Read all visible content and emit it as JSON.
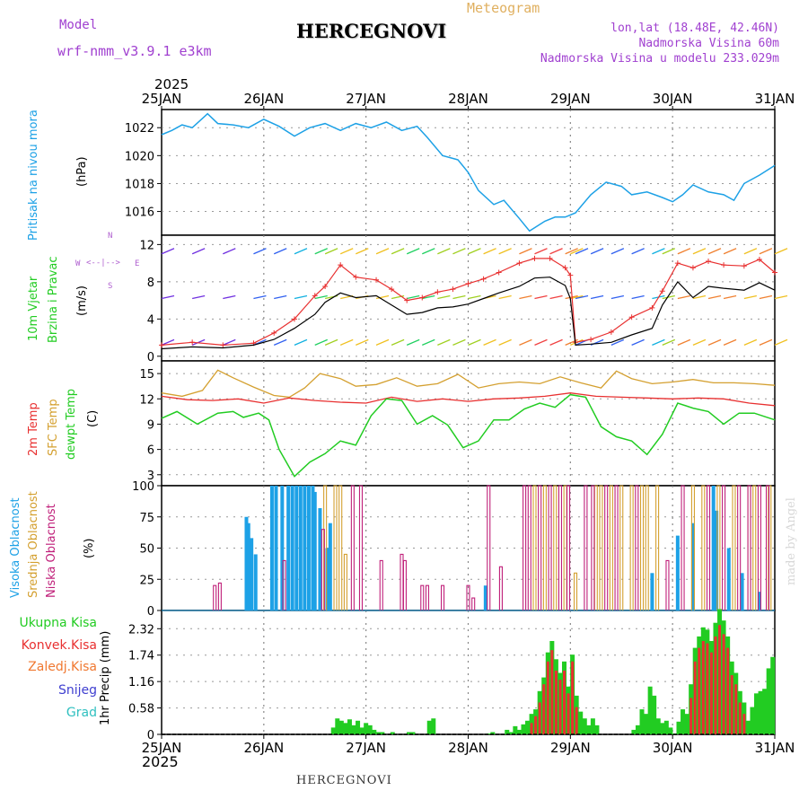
{
  "header": {
    "model_label": "Model",
    "model_name": "wrf-nmm_v3.9.1 e3km",
    "title": "HERCEGNOVI",
    "meteogram": "Meteogram",
    "coords": "lon,lat (18.48E, 42.46N)",
    "elevation": "Nadmorska Visina 60m",
    "model_elevation": "Nadmorska Visina u modelu 233.029m",
    "footer_title": "HERCEGNOVI",
    "watermark": "made by Angel"
  },
  "time_axis": {
    "year": "2025",
    "ticks": [
      "25JAN",
      "26JAN",
      "27JAN",
      "28JAN",
      "29JAN",
      "30JAN",
      "31JAN"
    ]
  },
  "colors": {
    "pressure": "#1da1e6",
    "wind_speed": "#000000",
    "wind_gust": "#e83030",
    "t2m": "#e83030",
    "sfc": "#d4a030",
    "dewpt": "#22cc22",
    "high_cloud": "#1da1e6",
    "mid_cloud": "#d4a030",
    "low_cloud": "#c0207a",
    "total_precip": "#22cc22",
    "conv_precip": "#e83030"
  },
  "chart_data": [
    {
      "type": "line",
      "title": "Pritisak na nivou mora",
      "ylabel": "(hPa)",
      "yticks": [
        "1022",
        "1020",
        "1018",
        "1016"
      ],
      "ylim": [
        1014.3,
        1023.3
      ],
      "xlim": [
        0,
        6
      ],
      "series": [
        {
          "name": "pressure",
          "x": [
            0,
            0.1,
            0.2,
            0.3,
            0.45,
            0.55,
            0.7,
            0.85,
            1.0,
            1.15,
            1.3,
            1.45,
            1.6,
            1.75,
            1.9,
            2.05,
            2.2,
            2.35,
            2.5,
            2.6,
            2.75,
            2.9,
            3.0,
            3.1,
            3.25,
            3.35,
            3.5,
            3.6,
            3.75,
            3.85,
            3.95,
            4.05,
            4.2,
            4.35,
            4.5,
            4.6,
            4.75,
            4.9,
            5.0,
            5.1,
            5.2,
            5.35,
            5.5,
            5.6,
            5.7,
            5.85,
            6.0
          ],
          "values": [
            1021.5,
            1021.8,
            1022.2,
            1022.0,
            1023.0,
            1022.3,
            1022.2,
            1022.0,
            1022.6,
            1022.1,
            1021.4,
            1022.0,
            1022.3,
            1021.8,
            1022.3,
            1022.0,
            1022.4,
            1021.8,
            1022.1,
            1021.3,
            1020.0,
            1019.7,
            1018.8,
            1017.5,
            1016.5,
            1016.8,
            1015.5,
            1014.6,
            1015.3,
            1015.6,
            1015.6,
            1015.9,
            1017.2,
            1018.1,
            1017.8,
            1017.2,
            1017.4,
            1017.0,
            1016.7,
            1017.2,
            1017.9,
            1017.4,
            1017.2,
            1016.8,
            1018.0,
            1018.6,
            1019.3
          ]
        }
      ]
    },
    {
      "type": "line",
      "title": "10m Vjetar Brzina i Pravac",
      "ylabel": "(m/s)",
      "yticks": [
        "12",
        "8",
        "4",
        "0"
      ],
      "ylim": [
        -0.5,
        13
      ],
      "compass": {
        "n": "N",
        "e": "E",
        "w": "W",
        "s": "S"
      },
      "xlim": [
        0,
        6
      ],
      "series": [
        {
          "name": "wind_speed",
          "x": [
            0,
            0.3,
            0.6,
            0.9,
            1.1,
            1.3,
            1.5,
            1.6,
            1.75,
            1.9,
            2.1,
            2.25,
            2.4,
            2.55,
            2.7,
            2.85,
            3.0,
            3.15,
            3.3,
            3.5,
            3.65,
            3.8,
            3.95,
            4.0,
            4.05,
            4.2,
            4.4,
            4.6,
            4.8,
            4.9,
            5.05,
            5.2,
            5.35,
            5.5,
            5.7,
            5.85,
            6.0
          ],
          "values": [
            0.8,
            1.0,
            0.9,
            1.2,
            1.8,
            3.0,
            4.5,
            5.8,
            6.8,
            6.3,
            6.5,
            5.5,
            4.5,
            4.7,
            5.2,
            5.3,
            5.6,
            6.2,
            6.8,
            7.5,
            8.4,
            8.5,
            7.6,
            6.2,
            1.2,
            1.3,
            1.5,
            2.3,
            3.0,
            5.5,
            8.0,
            6.3,
            7.5,
            7.3,
            7.1,
            7.9,
            7.1
          ]
        },
        {
          "name": "wind_gust",
          "x": [
            0,
            0.3,
            0.6,
            0.9,
            1.1,
            1.3,
            1.5,
            1.6,
            1.75,
            1.9,
            2.1,
            2.25,
            2.4,
            2.55,
            2.7,
            2.85,
            3.0,
            3.15,
            3.3,
            3.5,
            3.65,
            3.8,
            3.95,
            4.0,
            4.05,
            4.2,
            4.4,
            4.6,
            4.8,
            4.9,
            5.05,
            5.2,
            5.35,
            5.5,
            5.7,
            5.85,
            6.0
          ],
          "values": [
            1.2,
            1.5,
            1.2,
            1.4,
            2.5,
            4.0,
            6.5,
            7.5,
            9.8,
            8.5,
            8.2,
            7.2,
            6.0,
            6.3,
            6.9,
            7.2,
            7.8,
            8.3,
            9.0,
            10.0,
            10.5,
            10.5,
            9.5,
            8.7,
            1.5,
            1.8,
            2.6,
            4.2,
            5.2,
            7.0,
            10.0,
            9.5,
            10.2,
            9.8,
            9.7,
            10.4,
            9.0
          ]
        }
      ]
    },
    {
      "type": "line",
      "title": "2m Temp / SFC Temp / dewpt Temp",
      "ylabel": "(C)",
      "yticks": [
        "15",
        "12",
        "9",
        "6",
        "3"
      ],
      "ylim": [
        1.7,
        16.5
      ],
      "xlim": [
        0,
        6
      ],
      "series": [
        {
          "name": "2m Temp",
          "x": [
            0,
            0.25,
            0.5,
            0.75,
            1.0,
            1.25,
            1.5,
            1.75,
            2.0,
            2.25,
            2.5,
            2.75,
            3.0,
            3.25,
            3.5,
            3.75,
            4.0,
            4.25,
            4.5,
            4.75,
            5.0,
            5.25,
            5.5,
            5.75,
            6.0
          ],
          "values": [
            12.3,
            11.9,
            11.8,
            12.0,
            11.5,
            12.1,
            11.8,
            11.6,
            11.5,
            12.2,
            11.7,
            12.0,
            11.7,
            12.0,
            12.1,
            12.3,
            12.7,
            12.3,
            12.2,
            12.1,
            12.0,
            12.1,
            12.0,
            11.5,
            11.2
          ]
        },
        {
          "name": "SFC Temp",
          "x": [
            0,
            0.2,
            0.4,
            0.55,
            0.7,
            0.9,
            1.1,
            1.25,
            1.4,
            1.55,
            1.75,
            1.9,
            2.1,
            2.3,
            2.5,
            2.7,
            2.9,
            3.1,
            3.3,
            3.5,
            3.7,
            3.9,
            4.1,
            4.3,
            4.45,
            4.6,
            4.8,
            5.0,
            5.2,
            5.4,
            5.6,
            5.8,
            6.0
          ],
          "values": [
            12.7,
            12.3,
            13.0,
            15.4,
            14.5,
            13.4,
            12.4,
            12.2,
            13.3,
            15.0,
            14.4,
            13.5,
            13.7,
            14.5,
            13.5,
            13.8,
            14.9,
            13.3,
            13.8,
            14.0,
            13.8,
            14.6,
            13.9,
            13.3,
            15.3,
            14.4,
            13.8,
            14.0,
            14.3,
            13.9,
            13.9,
            13.8,
            13.6
          ]
        },
        {
          "name": "dewpt Temp",
          "x": [
            0,
            0.15,
            0.35,
            0.55,
            0.7,
            0.8,
            0.95,
            1.05,
            1.15,
            1.3,
            1.45,
            1.6,
            1.75,
            1.9,
            2.05,
            2.2,
            2.35,
            2.5,
            2.65,
            2.8,
            2.95,
            3.1,
            3.25,
            3.4,
            3.55,
            3.7,
            3.85,
            4.0,
            4.15,
            4.3,
            4.45,
            4.6,
            4.75,
            4.9,
            5.05,
            5.2,
            5.35,
            5.5,
            5.65,
            5.8,
            6.0
          ],
          "values": [
            9.7,
            10.5,
            9.0,
            10.3,
            10.5,
            9.8,
            10.3,
            9.5,
            6.0,
            2.8,
            4.5,
            5.5,
            7.0,
            6.5,
            10.0,
            12.0,
            11.8,
            9.0,
            10.0,
            8.9,
            6.2,
            7.0,
            9.5,
            9.5,
            10.8,
            11.5,
            11.0,
            12.5,
            12.2,
            8.7,
            7.5,
            7.0,
            5.4,
            7.8,
            11.5,
            10.9,
            10.5,
            9.0,
            10.3,
            10.3,
            9.5
          ]
        }
      ]
    },
    {
      "type": "bar",
      "title": "Visoka / Srednja / Niska Oblacnost",
      "ylabel": "(%)",
      "yticks": [
        "100",
        "75",
        "50",
        "25",
        "0"
      ],
      "ylim": [
        0,
        100
      ],
      "xlim": [
        0,
        6
      ],
      "series": [
        {
          "name": "Visoka Oblacnost",
          "x": [
            0.83,
            0.85,
            0.88,
            0.92,
            1.08,
            1.12,
            1.18,
            1.24,
            1.28,
            1.32,
            1.36,
            1.4,
            1.44,
            1.48,
            1.5,
            1.55,
            1.62,
            1.65,
            3.17,
            4.8,
            5.05,
            5.2,
            5.4,
            5.43,
            5.55,
            5.68,
            5.85
          ],
          "values": [
            75,
            70,
            58,
            45,
            100,
            100,
            100,
            100,
            100,
            100,
            100,
            100,
            100,
            100,
            95,
            82,
            50,
            70,
            20,
            30,
            60,
            70,
            100,
            80,
            50,
            30,
            15
          ]
        },
        {
          "name": "Srednja Oblacnost",
          "x": [
            1.6,
            1.7,
            1.75,
            1.8,
            3.65,
            3.75,
            3.85,
            3.95,
            4.05,
            4.25,
            4.3,
            4.4,
            4.5,
            4.6,
            4.7,
            4.75,
            4.85,
            5.2,
            5.3,
            5.45,
            5.6,
            5.75,
            5.8,
            5.95
          ],
          "values": [
            100,
            100,
            100,
            45,
            100,
            100,
            100,
            100,
            30,
            100,
            100,
            100,
            100,
            100,
            100,
            100,
            100,
            100,
            100,
            100,
            100,
            100,
            100,
            100
          ]
        },
        {
          "name": "Niska Oblacnost",
          "x": [
            0.52,
            0.57,
            1.2,
            1.58,
            1.87,
            1.95,
            2.15,
            2.35,
            2.38,
            2.55,
            2.6,
            2.75,
            3.0,
            3.05,
            3.2,
            3.32,
            3.55,
            3.6,
            3.7,
            3.8,
            3.9,
            3.98,
            4.15,
            4.22,
            4.35,
            4.45,
            4.65,
            4.95,
            5.1,
            5.35,
            5.5,
            5.65,
            5.75,
            5.85,
            5.93
          ],
          "values": [
            20,
            22,
            40,
            65,
            100,
            100,
            40,
            45,
            40,
            20,
            20,
            20,
            20,
            10,
            100,
            35,
            100,
            100,
            100,
            100,
            100,
            100,
            100,
            100,
            100,
            100,
            100,
            40,
            100,
            100,
            100,
            100,
            100,
            100,
            100
          ]
        }
      ]
    },
    {
      "type": "bar",
      "title": "1hr Precip",
      "ylabel": "1hr Precip (mm)",
      "legend": [
        "Ukupna Kisa",
        "Konvek.Kisa",
        "Zaledj.Kisa",
        "Snijeg",
        "Grad"
      ],
      "yticks": [
        "2.32",
        "1.74",
        "1.16",
        "0.58",
        "0"
      ],
      "ylim": [
        0,
        2.72
      ],
      "xlim": [
        0,
        6
      ],
      "series": [
        {
          "name": "Ukupna Kisa",
          "x": [
            1.68,
            1.72,
            1.76,
            1.8,
            1.84,
            1.88,
            1.92,
            1.96,
            2.0,
            2.04,
            2.08,
            2.12,
            2.16,
            2.26,
            2.42,
            2.46,
            2.62,
            2.66,
            3.2,
            3.24,
            3.38,
            3.42,
            3.46,
            3.5,
            3.54,
            3.58,
            3.62,
            3.66,
            3.7,
            3.74,
            3.78,
            3.82,
            3.86,
            3.9,
            3.94,
            3.98,
            4.02,
            4.06,
            4.1,
            4.14,
            4.18,
            4.22,
            4.26,
            4.62,
            4.66,
            4.7,
            4.74,
            4.78,
            4.82,
            4.86,
            4.9,
            4.94,
            4.98,
            5.02,
            5.06,
            5.1,
            5.14,
            5.18,
            5.22,
            5.26,
            5.3,
            5.34,
            5.38,
            5.42,
            5.46,
            5.5,
            5.54,
            5.58,
            5.62,
            5.66,
            5.7,
            5.74,
            5.78,
            5.82,
            5.86,
            5.9,
            5.94,
            5.98
          ],
          "values": [
            0.15,
            0.35,
            0.3,
            0.25,
            0.33,
            0.2,
            0.3,
            0.15,
            0.25,
            0.2,
            0.1,
            0.05,
            0.05,
            0.05,
            0.05,
            0.05,
            0.3,
            0.35,
            0.02,
            0.05,
            0.1,
            0.05,
            0.18,
            0.1,
            0.22,
            0.3,
            0.45,
            0.55,
            0.95,
            1.25,
            1.8,
            2.05,
            1.65,
            1.35,
            1.6,
            1.05,
            1.75,
            0.85,
            0.5,
            0.35,
            0.2,
            0.35,
            0.2,
            0.1,
            0.2,
            0.55,
            0.45,
            1.05,
            0.85,
            0.35,
            0.25,
            0.3,
            0.15,
            0.02,
            0.28,
            0.55,
            0.45,
            1.1,
            1.9,
            2.15,
            2.35,
            2.3,
            2.05,
            2.45,
            2.75,
            2.5,
            2.15,
            1.6,
            1.35,
            0.95,
            0.7,
            0.3,
            0.6,
            0.9,
            0.95,
            1.0,
            1.45,
            1.7
          ]
        },
        {
          "name": "Konvek.Kisa",
          "x": [
            3.62,
            3.66,
            3.7,
            3.74,
            3.78,
            3.82,
            3.86,
            3.9,
            3.94,
            3.98,
            4.02,
            4.06,
            5.18,
            5.22,
            5.26,
            5.3,
            5.34,
            5.38,
            5.42,
            5.46,
            5.5,
            5.54,
            5.58,
            5.62,
            5.66,
            5.7
          ],
          "values": [
            0.25,
            0.4,
            0.7,
            1.1,
            1.6,
            1.85,
            1.4,
            1.2,
            1.4,
            0.9,
            1.6,
            0.6,
            0.8,
            1.6,
            1.9,
            2.05,
            2.0,
            1.8,
            2.15,
            2.4,
            2.2,
            1.9,
            1.3,
            1.1,
            0.7,
            0.45
          ]
        }
      ]
    }
  ]
}
